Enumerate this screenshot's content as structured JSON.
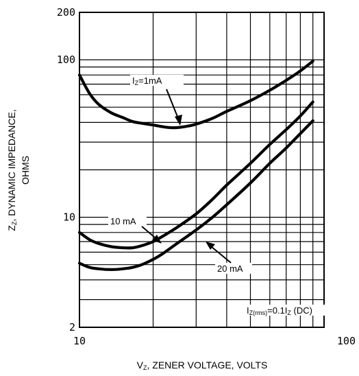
{
  "chart_data": {
    "type": "line",
    "x_scale": "log",
    "y_scale": "log",
    "xlim": [
      10,
      100
    ],
    "ylim": [
      2,
      200
    ],
    "xlabel": {
      "main": "V",
      "sub": "Z",
      "rest": ", ZENER VOLTAGE, VOLTS"
    },
    "ylabel": {
      "main": "Z",
      "sub": "Z",
      "rest": ", DYNAMIC IMPEDANCE,",
      "line2": "OHMS"
    },
    "x_tick_labels": [
      {
        "value": 10,
        "label": "10"
      },
      {
        "value": 100,
        "label": "100"
      }
    ],
    "y_tick_labels": [
      {
        "value": 2,
        "label": "2"
      },
      {
        "value": 10,
        "label": "10"
      },
      {
        "value": 100,
        "label": "100"
      },
      {
        "value": 200,
        "label": "200"
      }
    ],
    "x_gridlines": [
      10,
      20,
      30,
      40,
      50,
      60,
      70,
      80,
      90,
      100
    ],
    "y_gridlines": [
      2,
      3,
      4,
      5,
      6,
      7,
      8,
      9,
      10,
      20,
      30,
      40,
      50,
      60,
      70,
      80,
      90,
      100,
      200
    ],
    "grid": true,
    "series": [
      {
        "name": "IZ=1mA",
        "label_main": "I",
        "label_sub": "Z",
        "label_rest": "=1mA",
        "x": [
          10,
          11,
          12,
          13.5,
          15,
          16.5,
          18,
          20,
          22,
          24,
          26,
          28,
          30,
          35,
          40,
          50,
          60,
          70,
          80,
          90
        ],
        "y": [
          80,
          61,
          52,
          46,
          43,
          40.5,
          39.5,
          38.5,
          37.5,
          37,
          37.3,
          38,
          39,
          42.5,
          47,
          55,
          64,
          74,
          85,
          98
        ]
      },
      {
        "name": "10 mA",
        "label_main": "10 mA",
        "x": [
          10,
          11,
          12,
          13.5,
          15,
          16.5,
          18,
          20,
          22,
          25,
          30,
          35,
          40,
          50,
          60,
          70,
          80,
          90
        ],
        "y": [
          8,
          7.2,
          6.8,
          6.5,
          6.4,
          6.4,
          6.6,
          7,
          7.6,
          8.6,
          10.5,
          13,
          16,
          22,
          29,
          36,
          44,
          54
        ]
      },
      {
        "name": "20 mA",
        "label_main": "20 mA",
        "x": [
          10,
          11,
          12,
          13.5,
          15,
          16.5,
          18,
          20,
          22,
          25,
          30,
          35,
          40,
          50,
          60,
          70,
          80,
          90
        ],
        "y": [
          5.1,
          4.8,
          4.7,
          4.65,
          4.7,
          4.8,
          5,
          5.4,
          5.9,
          6.8,
          8.3,
          10,
          12,
          16.5,
          22,
          27.5,
          34,
          41
        ]
      }
    ],
    "annotation": {
      "main": "I",
      "sub": "Z(rms)",
      "rest": "=0.1I",
      "sub2": "Z",
      "rest2": " (DC)"
    }
  }
}
